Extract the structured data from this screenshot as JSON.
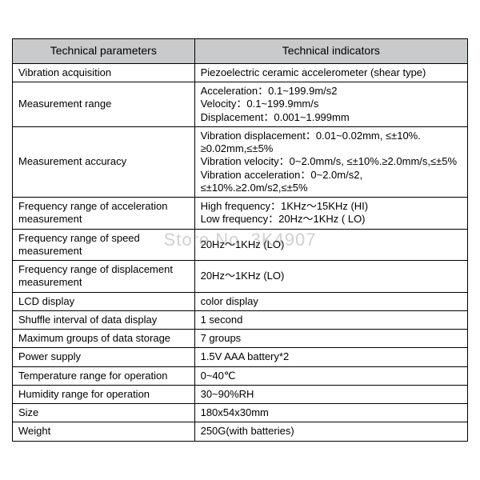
{
  "table": {
    "header_bg": "#c9cacb",
    "border_color": "#000000",
    "font_family": "Arial",
    "columns": [
      {
        "label": "Technical parameters",
        "width_pct": 40
      },
      {
        "label": "Technical indicators",
        "width_pct": 60
      }
    ],
    "rows": [
      {
        "param": "Vibration acquisition",
        "value": "Piezoelectric ceramic accelerometer (shear type)"
      },
      {
        "param": "Measurement range",
        "value": "Acceleration：0.1~199.9m/s2\nVelocity：0.1~199.9mm/s\nDisplacement：0.001~1.999mm"
      },
      {
        "param": "Measurement accuracy",
        "value": "Vibration displacement：0.01~0.02mm, ≤±10%. ≥0.02mm,≤±5%\nVibration velocity：0~2.0mm/s, ≤±10%.≥2.0mm/s,≤±5%\nVibration acceleration：0~2.0m/s2, ≤±10%.≥2.0m/s2,≤±5%"
      },
      {
        "param": "Frequency range of acceleration measurement",
        "value": "High frequency：1KHz～15KHz (HI)\nLow frequency：20Hz～1KHz ( LO)"
      },
      {
        "param": "Frequency range of speed measurement",
        "value": "20Hz～1KHz (LO)"
      },
      {
        "param": "Frequency range of displacement measurement",
        "value": "20Hz～1KHz (LO)"
      },
      {
        "param": "LCD display",
        "value": "color display"
      },
      {
        "param": "Shuffle interval of data display",
        "value": "1 second"
      },
      {
        "param": "Maximum groups of data storage",
        "value": "7 groups"
      },
      {
        "param": "Power supply",
        "value": "1.5V AAA battery*2"
      },
      {
        "param": "Temperature range for operation",
        "value": "0~40℃"
      },
      {
        "param": "Humidity range for operation",
        "value": "30~90%RH"
      },
      {
        "param": "Size",
        "value": "180x54x30mm"
      },
      {
        "param": "Weight",
        "value": "250G(with batteries)"
      }
    ]
  },
  "watermark": "Store No. 3K4907"
}
